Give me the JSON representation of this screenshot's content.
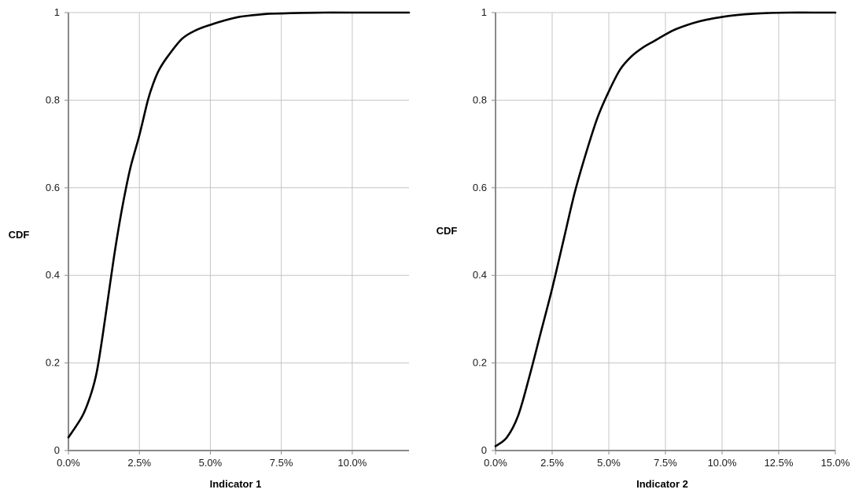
{
  "chart_data": [
    {
      "type": "line",
      "title": "",
      "xlabel": "Indicator 1",
      "ylabel": "CDF",
      "xlim": [
        0,
        0.12
      ],
      "ylim": [
        0,
        1
      ],
      "grid": true,
      "x_ticks": [
        0,
        0.025,
        0.05,
        0.075,
        0.1
      ],
      "x_tick_labels": [
        "0.0%",
        "2.5%",
        "5.0%",
        "7.5%",
        "10.0%"
      ],
      "y_ticks": [
        0,
        0.2,
        0.4,
        0.6,
        0.8,
        1
      ],
      "y_tick_labels": [
        "0",
        "0.2",
        "0.4",
        "0.6",
        "0.8",
        "1"
      ],
      "series": [
        {
          "x": [
            0,
            0.005,
            0.008,
            0.01,
            0.012,
            0.014,
            0.016,
            0.018,
            0.02,
            0.022,
            0.025,
            0.028,
            0.03,
            0.032,
            0.035,
            0.04,
            0.045,
            0.05,
            0.055,
            0.06,
            0.065,
            0.07,
            0.075,
            0.08,
            0.09,
            0.1,
            0.12
          ],
          "y": [
            0.03,
            0.08,
            0.13,
            0.18,
            0.26,
            0.35,
            0.44,
            0.52,
            0.59,
            0.65,
            0.72,
            0.8,
            0.84,
            0.87,
            0.9,
            0.94,
            0.96,
            0.972,
            0.982,
            0.99,
            0.994,
            0.997,
            0.998,
            0.999,
            1,
            1,
            1
          ],
          "color": "#000000"
        }
      ]
    },
    {
      "type": "line",
      "title": "",
      "xlabel": "Indicator 2",
      "ylabel": "CDF",
      "xlim": [
        0,
        0.15
      ],
      "ylim": [
        0,
        1
      ],
      "grid": true,
      "x_ticks": [
        0,
        0.025,
        0.05,
        0.075,
        0.1,
        0.125,
        0.15
      ],
      "x_tick_labels": [
        "0.0%",
        "2.5%",
        "5.0%",
        "7.5%",
        "10.0%",
        "12.5%",
        "15.0%"
      ],
      "y_ticks": [
        0,
        0.2,
        0.4,
        0.6,
        0.8,
        1
      ],
      "y_tick_labels": [
        "0",
        "0.2",
        "0.4",
        "0.6",
        "0.8",
        "1"
      ],
      "series": [
        {
          "x": [
            0,
            0.005,
            0.01,
            0.015,
            0.02,
            0.025,
            0.03,
            0.035,
            0.04,
            0.045,
            0.05,
            0.055,
            0.06,
            0.065,
            0.07,
            0.075,
            0.08,
            0.09,
            0.1,
            0.11,
            0.12,
            0.13,
            0.14,
            0.15
          ],
          "y": [
            0.01,
            0.03,
            0.08,
            0.17,
            0.27,
            0.37,
            0.48,
            0.59,
            0.68,
            0.76,
            0.82,
            0.87,
            0.9,
            0.92,
            0.935,
            0.95,
            0.963,
            0.98,
            0.99,
            0.996,
            0.999,
            1,
            1,
            1
          ],
          "color": "#000000"
        }
      ]
    }
  ]
}
